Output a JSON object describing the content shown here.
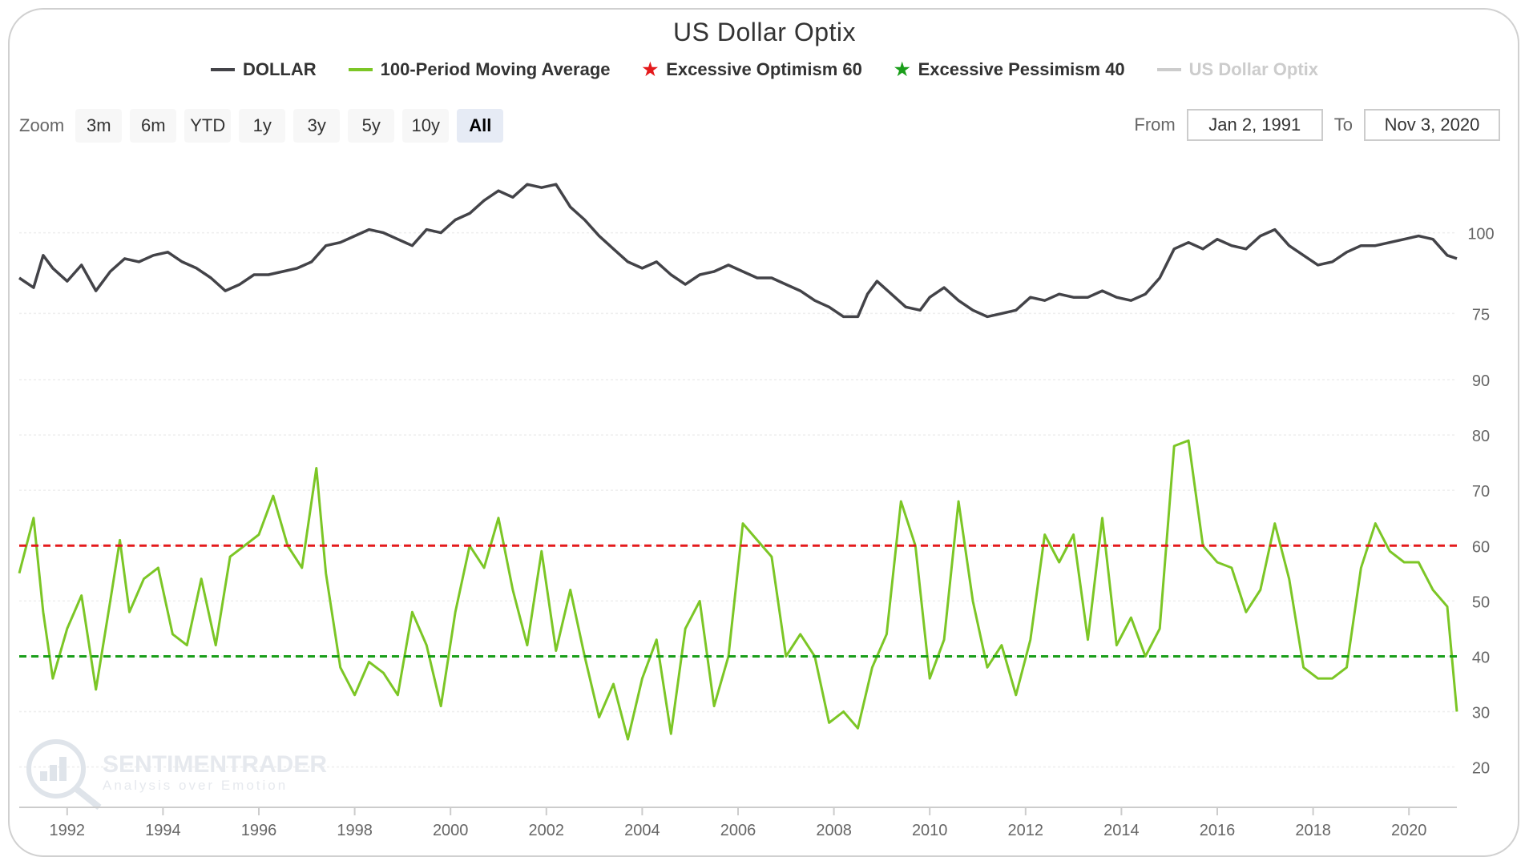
{
  "title": "US Dollar Optix",
  "legend": [
    {
      "label": "DOLLAR",
      "color": "#434348",
      "symbol": "line",
      "icon": "line-icon",
      "enabled": true
    },
    {
      "label": "100-Period Moving Average",
      "color": "#7cc626",
      "symbol": "line",
      "icon": "line-icon",
      "enabled": true
    },
    {
      "label": "Excessive Optimism 60",
      "color": "#e41a1c",
      "symbol": "star",
      "icon": "star-icon",
      "enabled": true
    },
    {
      "label": "Excessive Pessimism 40",
      "color": "#1a9e1a",
      "symbol": "star",
      "icon": "star-icon",
      "enabled": true
    },
    {
      "label": "US Dollar Optix",
      "color": "#cccccc",
      "symbol": "line",
      "icon": "line-icon",
      "enabled": false
    }
  ],
  "zoom": {
    "label": "Zoom",
    "buttons": [
      "3m",
      "6m",
      "YTD",
      "1y",
      "3y",
      "5y",
      "10y",
      "All"
    ],
    "active": "All"
  },
  "range": {
    "from_label": "From",
    "from_value": "Jan 2, 1991",
    "to_label": "To",
    "to_value": "Nov 3, 2020"
  },
  "watermark": {
    "brand": "SENTIMENTRADER",
    "tagline": "Analysis over Emotion",
    "icon": "magnifier-chart-icon"
  },
  "chart_data": [
    {
      "type": "line",
      "panel": "upper",
      "series": [
        {
          "name": "DOLLAR",
          "color": "#434348",
          "x": [
            1991.0,
            1991.3,
            1991.5,
            1991.7,
            1992.0,
            1992.3,
            1992.6,
            1992.9,
            1993.2,
            1993.5,
            1993.8,
            1994.1,
            1994.4,
            1994.7,
            1995.0,
            1995.3,
            1995.6,
            1995.9,
            1996.2,
            1996.5,
            1996.8,
            1997.1,
            1997.4,
            1997.7,
            1998.0,
            1998.3,
            1998.6,
            1998.9,
            1999.2,
            1999.5,
            1999.8,
            2000.1,
            2000.4,
            2000.7,
            2001.0,
            2001.3,
            2001.6,
            2001.9,
            2002.2,
            2002.5,
            2002.8,
            2003.1,
            2003.4,
            2003.7,
            2004.0,
            2004.3,
            2004.6,
            2004.9,
            2005.2,
            2005.5,
            2005.8,
            2006.1,
            2006.4,
            2006.7,
            2007.0,
            2007.3,
            2007.6,
            2007.9,
            2008.2,
            2008.5,
            2008.7,
            2008.9,
            2009.2,
            2009.5,
            2009.8,
            2010.0,
            2010.3,
            2010.6,
            2010.9,
            2011.2,
            2011.5,
            2011.8,
            2012.1,
            2012.4,
            2012.7,
            2013.0,
            2013.3,
            2013.6,
            2013.9,
            2014.2,
            2014.5,
            2014.8,
            2015.1,
            2015.4,
            2015.7,
            2016.0,
            2016.3,
            2016.6,
            2016.9,
            2017.2,
            2017.5,
            2017.8,
            2018.1,
            2018.4,
            2018.7,
            2019.0,
            2019.3,
            2019.6,
            2019.9,
            2020.2,
            2020.5,
            2020.8,
            2021.0
          ],
          "y": [
            86,
            83,
            93,
            89,
            85,
            90,
            82,
            88,
            92,
            91,
            93,
            94,
            91,
            89,
            86,
            82,
            84,
            87,
            87,
            88,
            89,
            91,
            96,
            97,
            99,
            101,
            100,
            98,
            96,
            101,
            100,
            104,
            106,
            110,
            113,
            111,
            115,
            114,
            115,
            108,
            104,
            99,
            95,
            91,
            89,
            91,
            87,
            84,
            87,
            88,
            90,
            88,
            86,
            86,
            84,
            82,
            79,
            77,
            74,
            74,
            81,
            85,
            81,
            77,
            76,
            80,
            83,
            79,
            76,
            74,
            75,
            76,
            80,
            79,
            81,
            80,
            80,
            82,
            80,
            79,
            81,
            86,
            95,
            97,
            95,
            98,
            96,
            95,
            99,
            101,
            96,
            93,
            90,
            91,
            94,
            96,
            96,
            97,
            98,
            99,
            98,
            93,
            92
          ]
        }
      ],
      "yticks": [
        75,
        100
      ],
      "ylim": [
        53,
        121
      ]
    },
    {
      "type": "line",
      "panel": "lower",
      "series": [
        {
          "name": "100-Period Moving Average",
          "color": "#7cc626",
          "x": [
            1991.0,
            1991.3,
            1991.5,
            1991.7,
            1992.0,
            1992.3,
            1992.6,
            1992.9,
            1993.1,
            1993.3,
            1993.6,
            1993.9,
            1994.2,
            1994.5,
            1994.8,
            1995.1,
            1995.4,
            1995.7,
            1996.0,
            1996.3,
            1996.6,
            1996.9,
            1997.2,
            1997.4,
            1997.7,
            1998.0,
            1998.3,
            1998.6,
            1998.9,
            1999.2,
            1999.5,
            1999.8,
            2000.1,
            2000.4,
            2000.7,
            2001.0,
            2001.3,
            2001.6,
            2001.9,
            2002.2,
            2002.5,
            2002.8,
            2003.1,
            2003.4,
            2003.7,
            2004.0,
            2004.3,
            2004.6,
            2004.9,
            2005.2,
            2005.5,
            2005.8,
            2006.1,
            2006.4,
            2006.7,
            2007.0,
            2007.3,
            2007.6,
            2007.9,
            2008.2,
            2008.5,
            2008.8,
            2009.1,
            2009.4,
            2009.7,
            2010.0,
            2010.3,
            2010.6,
            2010.9,
            2011.2,
            2011.5,
            2011.8,
            2012.1,
            2012.4,
            2012.7,
            2013.0,
            2013.3,
            2013.6,
            2013.9,
            2014.2,
            2014.5,
            2014.8,
            2015.1,
            2015.4,
            2015.7,
            2016.0,
            2016.3,
            2016.6,
            2016.9,
            2017.2,
            2017.5,
            2017.8,
            2018.1,
            2018.4,
            2018.7,
            2019.0,
            2019.3,
            2019.6,
            2019.9,
            2020.2,
            2020.5,
            2020.8,
            2021.0
          ],
          "y": [
            55,
            65,
            48,
            36,
            45,
            51,
            34,
            50,
            61,
            48,
            54,
            56,
            44,
            42,
            54,
            42,
            58,
            60,
            62,
            69,
            60,
            56,
            74,
            55,
            38,
            33,
            39,
            37,
            33,
            48,
            42,
            31,
            48,
            60,
            56,
            65,
            52,
            42,
            59,
            41,
            52,
            40,
            29,
            35,
            25,
            36,
            43,
            26,
            45,
            50,
            31,
            40,
            64,
            61,
            58,
            40,
            44,
            40,
            28,
            30,
            27,
            38,
            44,
            68,
            60,
            36,
            43,
            68,
            50,
            38,
            42,
            33,
            43,
            62,
            57,
            62,
            43,
            65,
            42,
            47,
            40,
            45,
            78,
            79,
            60,
            57,
            56,
            48,
            52,
            64,
            54,
            38,
            36,
            36,
            38,
            56,
            64,
            59,
            57,
            57,
            52,
            49,
            30
          ]
        },
        {
          "name": "Excessive Optimism 60",
          "color": "#e41a1c",
          "x": [
            1991.0,
            2021.0
          ],
          "y": [
            60,
            60
          ],
          "style": "dashed"
        },
        {
          "name": "Excessive Pessimism 40",
          "color": "#1a9e1a",
          "x": [
            1991.0,
            2021.0
          ],
          "y": [
            40,
            40
          ],
          "style": "dashed"
        }
      ],
      "yticks": [
        20,
        30,
        40,
        50,
        60,
        70,
        80,
        90
      ],
      "ylim": [
        13,
        90
      ]
    }
  ],
  "x_axis": {
    "ticks": [
      1992,
      1994,
      1996,
      1998,
      2000,
      2002,
      2004,
      2006,
      2008,
      2010,
      2012,
      2014,
      2016,
      2018,
      2020
    ],
    "range": [
      1991.0,
      2021.0
    ]
  }
}
